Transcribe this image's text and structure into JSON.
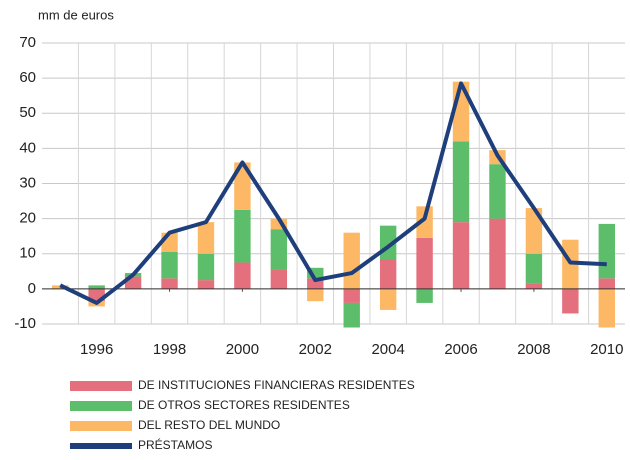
{
  "chart_data": {
    "type": "bar-line",
    "y_label": "mm de euros",
    "x": [
      1995,
      1996,
      1997,
      1998,
      1999,
      2000,
      2001,
      2002,
      2003,
      2004,
      2005,
      2006,
      2007,
      2008,
      2009,
      2010
    ],
    "xlim": [
      1994.5,
      2010.5
    ],
    "xticks": [
      1996,
      1998,
      2000,
      2002,
      2004,
      2006,
      2008,
      2010
    ],
    "ylim": [
      -10,
      70
    ],
    "yticks": [
      -10,
      0,
      10,
      20,
      30,
      40,
      50,
      60,
      70
    ],
    "grid": true,
    "series": [
      {
        "name": "DE INSTITUCIONES FINANCIERAS RESIDENTES",
        "kind": "bar",
        "color": "#e46f7d",
        "values": [
          0,
          -3.5,
          3.5,
          3,
          2.5,
          7.5,
          5.5,
          3,
          -4,
          8.5,
          14.5,
          19,
          20,
          1.5,
          -7,
          3
        ]
      },
      {
        "name": "DE OTROS SECTORES RESIDENTES",
        "kind": "bar",
        "color": "#5cbe6b",
        "values": [
          0,
          1,
          1,
          7.5,
          7.5,
          15,
          11.5,
          3,
          -7,
          9.5,
          -4,
          23,
          15.5,
          8.5,
          0,
          15.5
        ]
      },
      {
        "name": "DEL RESTO DEL MUNDO",
        "kind": "bar",
        "color": "#fdb865",
        "values": [
          1,
          -1.5,
          0,
          5.5,
          9,
          13.5,
          3,
          -3.5,
          16,
          -6,
          9,
          17,
          4,
          13,
          14,
          -11
        ]
      },
      {
        "name": "PRÉSTAMOS",
        "kind": "line",
        "color": "#1e3f7c",
        "values": [
          1,
          -4,
          4,
          16,
          19,
          36,
          20,
          2.5,
          4.5,
          12,
          20,
          58.5,
          38,
          23,
          7.5,
          7
        ]
      }
    ]
  }
}
